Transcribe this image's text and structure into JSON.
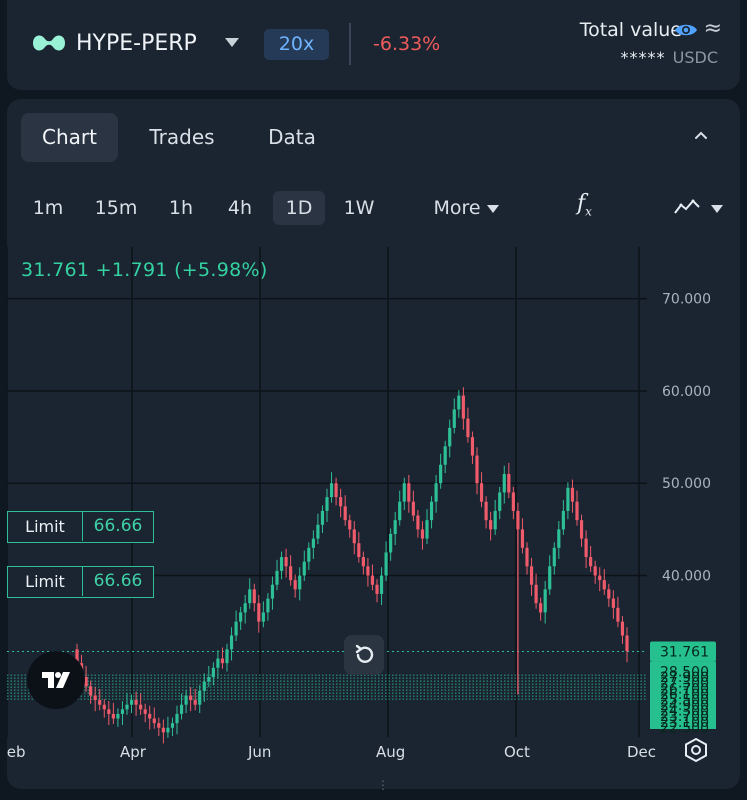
{
  "header": {
    "pair": "HYPE-PERP",
    "leverage": "20x",
    "change": "-6.33%",
    "total_value_label": "Total value",
    "approx_symbol": "≈",
    "masked_value": "*****",
    "currency": "USDC",
    "icons": [
      "hyperliquid-logo",
      "caret-down-icon",
      "eye-icon"
    ]
  },
  "tabs": [
    {
      "label": "Chart",
      "active": true
    },
    {
      "label": "Trades",
      "active": false
    },
    {
      "label": "Data",
      "active": false
    }
  ],
  "timeframes": [
    {
      "label": "1m",
      "active": false
    },
    {
      "label": "15m",
      "active": false
    },
    {
      "label": "1h",
      "active": false
    },
    {
      "label": "4h",
      "active": false
    },
    {
      "label": "1D",
      "active": true
    },
    {
      "label": "1W",
      "active": false
    }
  ],
  "toolbar": {
    "more_label": "More",
    "fx_label": "f",
    "fx_sub": "x"
  },
  "price_readout": "31.761 +1.791 (+5.98%)",
  "limits": [
    {
      "label": "Limit",
      "value": "66.66"
    },
    {
      "label": "Limit",
      "value": "66.66"
    }
  ],
  "chart_data": {
    "type": "candlestick",
    "ylim": [
      22.5,
      73
    ],
    "y_ticks": [
      "70.000",
      "60.000",
      "50.000",
      "40.000"
    ],
    "x_ticks": [
      "Feb",
      "Apr",
      "Jun",
      "Aug",
      "Oct",
      "Dec"
    ],
    "last_price": "31.761",
    "order_book_levels": [
      "28.500",
      "27.900",
      "27.300",
      "26.700",
      "26.100",
      "25.500",
      "24.900",
      "24.300",
      "23.700",
      "23.100",
      "22.500"
    ],
    "closes": [
      30.5,
      29.0,
      28.0,
      27.0,
      26.5,
      26.0,
      25.5,
      25.0,
      24.5,
      25.0,
      25.5,
      26.0,
      26.5,
      26.0,
      25.5,
      25.0,
      24.5,
      24.0,
      23.5,
      23.0,
      23.5,
      24.0,
      25.0,
      26.0,
      27.0,
      26.5,
      26.0,
      27.5,
      28.5,
      29.0,
      30.0,
      31.0,
      30.5,
      32.0,
      33.5,
      35.0,
      36.0,
      37.0,
      38.5,
      37.0,
      35.0,
      36.0,
      37.5,
      39.0,
      40.5,
      42.0,
      41.0,
      39.5,
      38.5,
      40.0,
      41.5,
      43.0,
      44.0,
      45.5,
      47.0,
      48.5,
      50.0,
      48.5,
      47.5,
      46.0,
      45.0,
      43.5,
      42.0,
      41.0,
      40.0,
      39.0,
      38.0,
      40.0,
      42.5,
      44.5,
      46.0,
      48.0,
      50.0,
      48.0,
      46.5,
      45.0,
      44.0,
      46.0,
      48.0,
      50.0,
      52.0,
      54.0,
      56.0,
      58.0,
      59.5,
      57.0,
      55.0,
      53.0,
      50.0,
      48.0,
      46.0,
      45.0,
      47.0,
      49.0,
      51.0,
      49.0,
      47.0,
      45.0,
      43.0,
      41.0,
      39.0,
      37.0,
      36.0,
      38.5,
      41.0,
      43.0,
      45.0,
      47.0,
      49.5,
      48.0,
      46.0,
      44.0,
      42.0,
      41.0,
      40.0,
      39.5,
      38.5,
      37.5,
      36.5,
      35.0,
      33.5,
      31.8
    ]
  }
}
